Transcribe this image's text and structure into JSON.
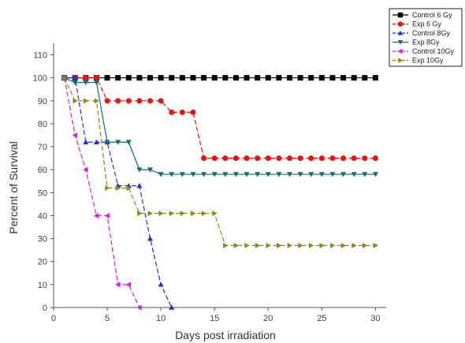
{
  "chart_data": {
    "type": "line",
    "title": "",
    "xlabel": "Days post irradiation",
    "ylabel": "Percent of Survival",
    "xlim": [
      0,
      31
    ],
    "ylim": [
      0,
      115
    ],
    "xticks": [
      0,
      5,
      10,
      15,
      20,
      25,
      30
    ],
    "yticks": [
      0,
      10,
      20,
      30,
      40,
      50,
      60,
      70,
      80,
      90,
      100,
      110
    ],
    "legend_position": "top-right",
    "series": [
      {
        "name": "Control 6 Gy",
        "color": "#000000",
        "marker": "square",
        "line_style": "solid",
        "points": [
          [
            1,
            100
          ],
          [
            2,
            100
          ],
          [
            3,
            100
          ],
          [
            4,
            100
          ],
          [
            5,
            100
          ],
          [
            6,
            100
          ],
          [
            7,
            100
          ],
          [
            8,
            100
          ],
          [
            9,
            100
          ],
          [
            10,
            100
          ],
          [
            11,
            100
          ],
          [
            12,
            100
          ],
          [
            13,
            100
          ],
          [
            14,
            100
          ],
          [
            15,
            100
          ],
          [
            16,
            100
          ],
          [
            17,
            100
          ],
          [
            18,
            100
          ],
          [
            19,
            100
          ],
          [
            20,
            100
          ],
          [
            21,
            100
          ],
          [
            22,
            100
          ],
          [
            23,
            100
          ],
          [
            24,
            100
          ],
          [
            25,
            100
          ],
          [
            26,
            100
          ],
          [
            27,
            100
          ],
          [
            28,
            100
          ],
          [
            29,
            100
          ],
          [
            30,
            100
          ]
        ]
      },
      {
        "name": "Exp 6 Gy",
        "color": "#ee1111",
        "marker": "circle",
        "line_style": "dashed",
        "points": [
          [
            1,
            100
          ],
          [
            2,
            100
          ],
          [
            3,
            100
          ],
          [
            4,
            100
          ],
          [
            5,
            90
          ],
          [
            6,
            90
          ],
          [
            7,
            90
          ],
          [
            8,
            90
          ],
          [
            9,
            90
          ],
          [
            10,
            90
          ],
          [
            11,
            85
          ],
          [
            12,
            85
          ],
          [
            13,
            85
          ],
          [
            14,
            65
          ],
          [
            15,
            65
          ],
          [
            16,
            65
          ],
          [
            17,
            65
          ],
          [
            18,
            65
          ],
          [
            19,
            65
          ],
          [
            20,
            65
          ],
          [
            21,
            65
          ],
          [
            22,
            65
          ],
          [
            23,
            65
          ],
          [
            24,
            65
          ],
          [
            25,
            65
          ],
          [
            26,
            65
          ],
          [
            27,
            65
          ],
          [
            28,
            65
          ],
          [
            29,
            65
          ],
          [
            30,
            65
          ]
        ]
      },
      {
        "name": "Control 8Gy",
        "color": "#1a2ee0",
        "marker": "triangle-up",
        "line_style": "dashed",
        "points": [
          [
            1,
            100
          ],
          [
            2,
            100
          ],
          [
            3,
            72
          ],
          [
            4,
            72
          ],
          [
            5,
            72
          ],
          [
            6,
            53
          ],
          [
            7,
            53
          ],
          [
            8,
            53
          ],
          [
            9,
            30
          ],
          [
            10,
            10
          ],
          [
            11,
            0
          ]
        ]
      },
      {
        "name": "Exp 8Gy",
        "color": "#0f7070",
        "marker": "triangle-down",
        "line_style": "solid",
        "points": [
          [
            1,
            100
          ],
          [
            2,
            98
          ],
          [
            3,
            98
          ],
          [
            4,
            98
          ],
          [
            5,
            72
          ],
          [
            6,
            72
          ],
          [
            7,
            72
          ],
          [
            8,
            60
          ],
          [
            9,
            60
          ],
          [
            10,
            58
          ],
          [
            11,
            58
          ],
          [
            12,
            58
          ],
          [
            13,
            58
          ],
          [
            14,
            58
          ],
          [
            15,
            58
          ],
          [
            16,
            58
          ],
          [
            17,
            58
          ],
          [
            18,
            58
          ],
          [
            19,
            58
          ],
          [
            20,
            58
          ],
          [
            21,
            58
          ],
          [
            22,
            58
          ],
          [
            23,
            58
          ],
          [
            24,
            58
          ],
          [
            25,
            58
          ],
          [
            26,
            58
          ],
          [
            27,
            58
          ],
          [
            28,
            58
          ],
          [
            29,
            58
          ],
          [
            30,
            58
          ]
        ]
      },
      {
        "name": "Control 10Gy",
        "color": "#e01ae0",
        "marker": "triangle-left",
        "line_style": "dashed",
        "points": [
          [
            1,
            100
          ],
          [
            2,
            75
          ],
          [
            3,
            60
          ],
          [
            4,
            40
          ],
          [
            5,
            40
          ],
          [
            6,
            10
          ],
          [
            7,
            10
          ],
          [
            8,
            0
          ]
        ]
      },
      {
        "name": "Exp 10Gy",
        "color": "#8b8b1a",
        "marker": "triangle-right",
        "line_style": "dashed",
        "points": [
          [
            1,
            100
          ],
          [
            2,
            90
          ],
          [
            3,
            90
          ],
          [
            4,
            90
          ],
          [
            5,
            52
          ],
          [
            6,
            52
          ],
          [
            7,
            52
          ],
          [
            8,
            41
          ],
          [
            9,
            41
          ],
          [
            10,
            41
          ],
          [
            11,
            41
          ],
          [
            12,
            41
          ],
          [
            13,
            41
          ],
          [
            14,
            41
          ],
          [
            15,
            41
          ],
          [
            16,
            27
          ],
          [
            17,
            27
          ],
          [
            18,
            27
          ],
          [
            19,
            27
          ],
          [
            20,
            27
          ],
          [
            21,
            27
          ],
          [
            22,
            27
          ],
          [
            23,
            27
          ],
          [
            24,
            27
          ],
          [
            25,
            27
          ],
          [
            26,
            27
          ],
          [
            27,
            27
          ],
          [
            28,
            27
          ],
          [
            29,
            27
          ],
          [
            30,
            27
          ]
        ]
      }
    ]
  }
}
